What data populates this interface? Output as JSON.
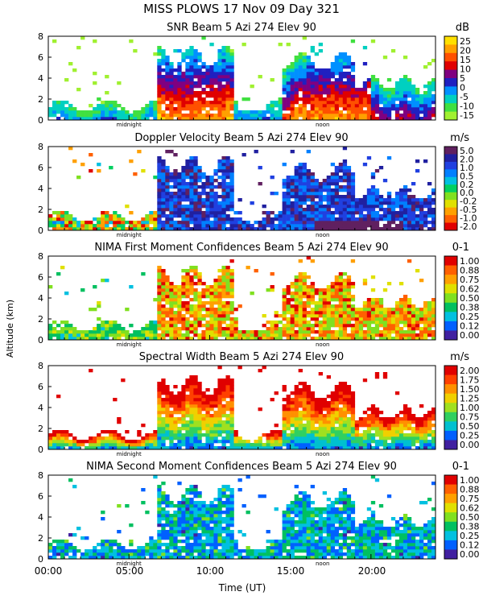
{
  "header": {
    "line1": "MISS PLOWS  17 Nov 09 Day 321"
  },
  "y_axis_label": "Altitude (km)",
  "x_axis_label": "Time (UT)",
  "x_ticks": [
    "00:00",
    "05:00",
    "10:00",
    "15:00",
    "20:00"
  ],
  "markers": {
    "midnight": "midnight",
    "noon": "noon"
  },
  "colors": {
    "background": "#ffffff"
  },
  "chart_data": [
    {
      "type": "heatmap",
      "title": "SNR Beam 5 Azi 274 Elev 90",
      "units": "dB",
      "ylabel": "Altitude (km)",
      "xlabel": "Time (UT)",
      "xlim": [
        0,
        24
      ],
      "ylim": [
        0,
        8
      ],
      "yticks": [
        "0",
        "2",
        "4",
        "6",
        "8"
      ],
      "scale_labels": [
        "25",
        "20",
        "15",
        "10",
        "5",
        "0",
        "-5",
        "-10",
        "-15"
      ],
      "scale_colors": [
        "#ffe000",
        "#ffa000",
        "#ff5000",
        "#e00000",
        "#800080",
        "#2020c0",
        "#0090ff",
        "#00d0c0",
        "#40e040",
        "#a0f030"
      ]
    },
    {
      "type": "heatmap",
      "title": "Doppler Velocity Beam 5 Azi 274 Elev 90",
      "units": "m/s",
      "ylabel": "Altitude (km)",
      "xlabel": "Time (UT)",
      "xlim": [
        0,
        24
      ],
      "ylim": [
        0,
        8
      ],
      "yticks": [
        "0",
        "2",
        "4",
        "6",
        "8"
      ],
      "scale_labels": [
        "5.0",
        "2.0",
        "1.0",
        "0.5",
        "0.2",
        "0.0",
        "-0.2",
        "-0.5",
        "-1.0",
        "-2.0"
      ],
      "scale_colors": [
        "#602060",
        "#2020a0",
        "#2040e0",
        "#0080ff",
        "#00c0e0",
        "#00d060",
        "#80e020",
        "#e0e000",
        "#ffa000",
        "#ff6000",
        "#e00000"
      ]
    },
    {
      "type": "heatmap",
      "title": "NIMA First Moment Confidences Beam 5 Azi 274 Elev 90",
      "units": "0-1",
      "ylabel": "Altitude (km)",
      "xlabel": "Time (UT)",
      "xlim": [
        0,
        24
      ],
      "ylim": [
        0,
        8
      ],
      "yticks": [
        "0",
        "2",
        "4",
        "6",
        "8"
      ],
      "scale_labels": [
        "1.00",
        "0.88",
        "0.75",
        "0.62",
        "0.50",
        "0.38",
        "0.25",
        "0.12",
        "0.00"
      ],
      "scale_colors": [
        "#e00000",
        "#ff6000",
        "#ffa000",
        "#e0e000",
        "#80e020",
        "#00c060",
        "#00c0e0",
        "#0060ff",
        "#4020a0"
      ]
    },
    {
      "type": "heatmap",
      "title": "Spectral Width Beam 5 Azi 274 Elev 90",
      "units": "m/s",
      "ylabel": "Altitude (km)",
      "xlabel": "Time (UT)",
      "xlim": [
        0,
        24
      ],
      "ylim": [
        0,
        8
      ],
      "yticks": [
        "0",
        "2",
        "4",
        "6",
        "8"
      ],
      "scale_labels": [
        "2.00",
        "1.75",
        "1.50",
        "1.25",
        "1.00",
        "0.75",
        "0.50",
        "0.25",
        "0.00"
      ],
      "scale_colors": [
        "#e00000",
        "#ff4000",
        "#ff9000",
        "#f0d000",
        "#a0e020",
        "#30d060",
        "#00c0d0",
        "#0060ff",
        "#4020a0"
      ]
    },
    {
      "type": "heatmap",
      "title": "NIMA Second Moment Confidences Beam 5 Azi 274 Elev 90",
      "units": "0-1",
      "ylabel": "Altitude (km)",
      "xlabel": "Time (UT)",
      "xlim": [
        0,
        24
      ],
      "ylim": [
        0,
        8
      ],
      "yticks": [
        "0",
        "2",
        "4",
        "6",
        "8"
      ],
      "scale_labels": [
        "1.00",
        "0.88",
        "0.75",
        "0.62",
        "0.50",
        "0.38",
        "0.25",
        "0.12",
        "0.00"
      ],
      "scale_colors": [
        "#e00000",
        "#ff6000",
        "#ffa000",
        "#e0e000",
        "#80e020",
        "#00c060",
        "#00c0e0",
        "#0060ff",
        "#4020a0"
      ]
    }
  ]
}
